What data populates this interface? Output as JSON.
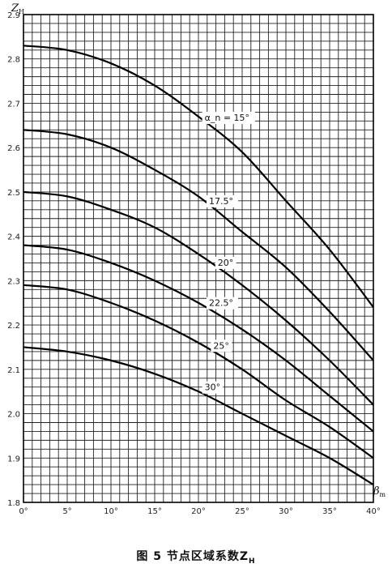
{
  "caption": "图 5   节点区域系数Z",
  "caption_sub": "H",
  "chart_data": {
    "type": "line",
    "ylabel": "Z",
    "ylabel_sub": "H",
    "xlabel": "β",
    "xlabel_sub": "m",
    "xlim": [
      0,
      40
    ],
    "ylim": [
      1.8,
      2.9
    ],
    "x_ticks": [
      0,
      5,
      10,
      15,
      20,
      25,
      30,
      35,
      40
    ],
    "x_tick_labels": [
      "0°",
      "5°",
      "10°",
      "15°",
      "20°",
      "25°",
      "30°",
      "35°",
      "40°"
    ],
    "y_ticks": [
      1.8,
      1.9,
      2.0,
      2.1,
      2.2,
      2.3,
      2.4,
      2.5,
      2.6,
      2.7,
      2.8,
      2.9
    ],
    "y_tick_labels": [
      "1.8",
      "1.9",
      "2.0",
      "2.1",
      "2.2",
      "2.3",
      "2.4",
      "2.5",
      "2.6",
      "2.7",
      "2.8",
      "2.9"
    ],
    "grid": true,
    "x": [
      0,
      5,
      10,
      15,
      20,
      25,
      30,
      35,
      40
    ],
    "series": [
      {
        "name": "α_n = 15°",
        "values": [
          2.83,
          2.82,
          2.79,
          2.74,
          2.67,
          2.59,
          2.48,
          2.37,
          2.24
        ]
      },
      {
        "name": "17.5°",
        "values": [
          2.64,
          2.63,
          2.6,
          2.55,
          2.49,
          2.41,
          2.33,
          2.23,
          2.12
        ]
      },
      {
        "name": "20°",
        "values": [
          2.5,
          2.49,
          2.46,
          2.42,
          2.36,
          2.29,
          2.21,
          2.12,
          2.02
        ]
      },
      {
        "name": "22.5°",
        "values": [
          2.38,
          2.37,
          2.34,
          2.3,
          2.25,
          2.19,
          2.12,
          2.04,
          1.96
        ]
      },
      {
        "name": "25°",
        "values": [
          2.29,
          2.28,
          2.25,
          2.21,
          2.16,
          2.1,
          2.03,
          1.97,
          1.9
        ]
      },
      {
        "name": "30°",
        "values": [
          2.15,
          2.14,
          2.12,
          2.09,
          2.05,
          2.0,
          1.95,
          1.9,
          1.84
        ]
      }
    ]
  }
}
